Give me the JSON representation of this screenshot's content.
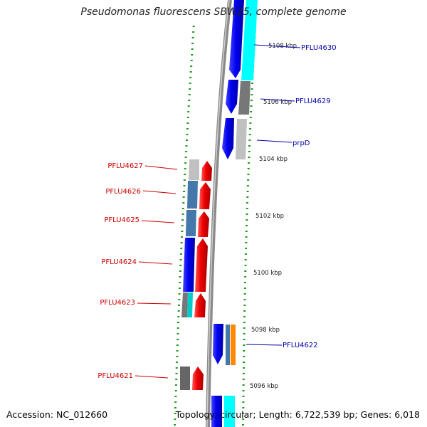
{
  "title": "Pseudomonas fluorescens SBW25, complete genome",
  "accession": "Accession: NC_012660",
  "topology": "Topology: circular; Length: 6,722,539 bp; Genes: 6,018",
  "scale_labels": [
    "5108 kbp",
    "5106 kbp",
    "5104 kbp",
    "5102 kbp",
    "5100 kbp",
    "5098 kbp",
    "5096 kbp"
  ],
  "gene_labels": {
    "right": [
      "PFLU4630",
      "PFLU4629",
      "prpD",
      "PFLU4622"
    ],
    "left": [
      "PFLU4627",
      "PFLU4626",
      "PFLU4625",
      "PFLU4624",
      "PFLU4623",
      "PFLU4621"
    ]
  },
  "colors": {
    "forward_strand": "#ee0000",
    "reverse_strand": "#0000ee",
    "cog_blue": "#4477aa",
    "cog_cyan": "#00ffff",
    "cog_gray": "#777777",
    "cog_lightgray": "#c0c0c0",
    "cog_orange": "#ff8800",
    "backbone": "#888888",
    "scale_ticks": "#229922"
  }
}
